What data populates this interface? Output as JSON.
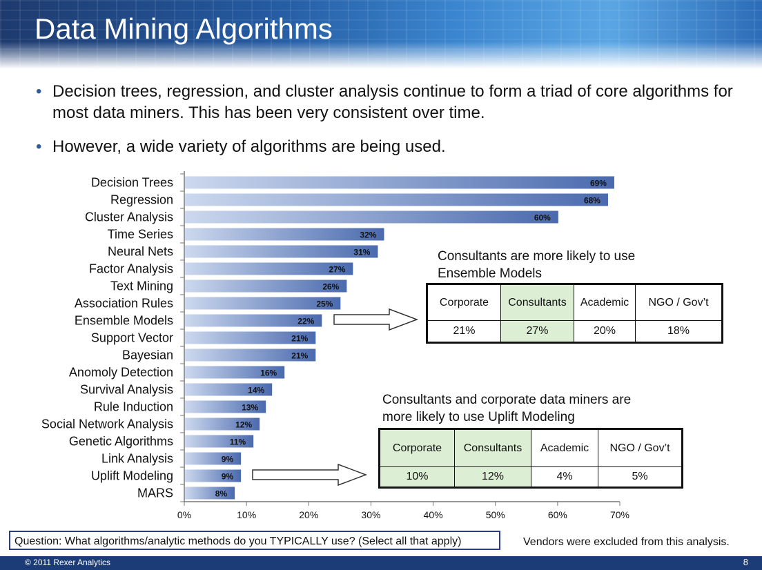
{
  "title": "Data Mining Algorithms",
  "bullets": [
    "Decision trees, regression, and cluster analysis continue to form a triad of core algorithms for most data miners.  This has been very consistent over time.",
    "However, a wide variety of algorithms are being used."
  ],
  "chart_data": {
    "type": "bar",
    "orientation": "horizontal",
    "categories": [
      "Decision Trees",
      "Regression",
      "Cluster Analysis",
      "Time Series",
      "Neural Nets",
      "Factor Analysis",
      "Text Mining",
      "Association Rules",
      "Ensemble Models",
      "Support Vector",
      "Bayesian",
      "Anomoly Detection",
      "Survival Analysis",
      "Rule Induction",
      "Social Network Analysis",
      "Genetic Algorithms",
      "Link Analysis",
      "Uplift Modeling",
      "MARS"
    ],
    "values": [
      69,
      68,
      60,
      32,
      31,
      27,
      26,
      25,
      22,
      21,
      21,
      16,
      14,
      13,
      12,
      11,
      9,
      9,
      8
    ],
    "value_labels": [
      "69%",
      "68%",
      "60%",
      "32%",
      "31%",
      "27%",
      "26%",
      "25%",
      "22%",
      "21%",
      "21%",
      "16%",
      "14%",
      "13%",
      "12%",
      "11%",
      "9%",
      "9%",
      "8%"
    ],
    "xlim": [
      0,
      70
    ],
    "xticks": [
      0,
      10,
      20,
      30,
      40,
      50,
      60,
      70
    ],
    "xtick_labels": [
      "0%",
      "10%",
      "20%",
      "30%",
      "40%",
      "50%",
      "60%",
      "70%"
    ],
    "bar_color_start": "#ccd8ee",
    "bar_color_end": "#4a6aae",
    "grid": false
  },
  "callouts": [
    {
      "heading_lines": [
        "Consultants are more likely to use",
        "Ensemble Models"
      ],
      "headers": [
        "Corporate",
        "Consultants",
        "Academic",
        "NGO / Gov’t"
      ],
      "values": [
        "21%",
        "27%",
        "20%",
        "18%"
      ],
      "highlight": [
        false,
        true,
        false,
        false
      ]
    },
    {
      "heading_lines": [
        "Consultants and corporate data miners are",
        "more likely to use Uplift Modeling"
      ],
      "headers": [
        "Corporate",
        "Consultants",
        "Academic",
        "NGO / Gov’t"
      ],
      "values": [
        "10%",
        "12%",
        "4%",
        "5%"
      ],
      "highlight": [
        true,
        true,
        false,
        false
      ]
    }
  ],
  "question": "Question:  What algorithms/analytic methods do you TYPICALLY use?  (Select all that apply)",
  "note": "Vendors were excluded from this analysis.",
  "footer": {
    "copyright": "© 2011 Rexer Analytics",
    "page_number": "8"
  },
  "colors": {
    "banner": "#245aa0",
    "footer": "#1c3c78",
    "highlight": "#dcefd4",
    "question_border": "#2b3a8a"
  }
}
